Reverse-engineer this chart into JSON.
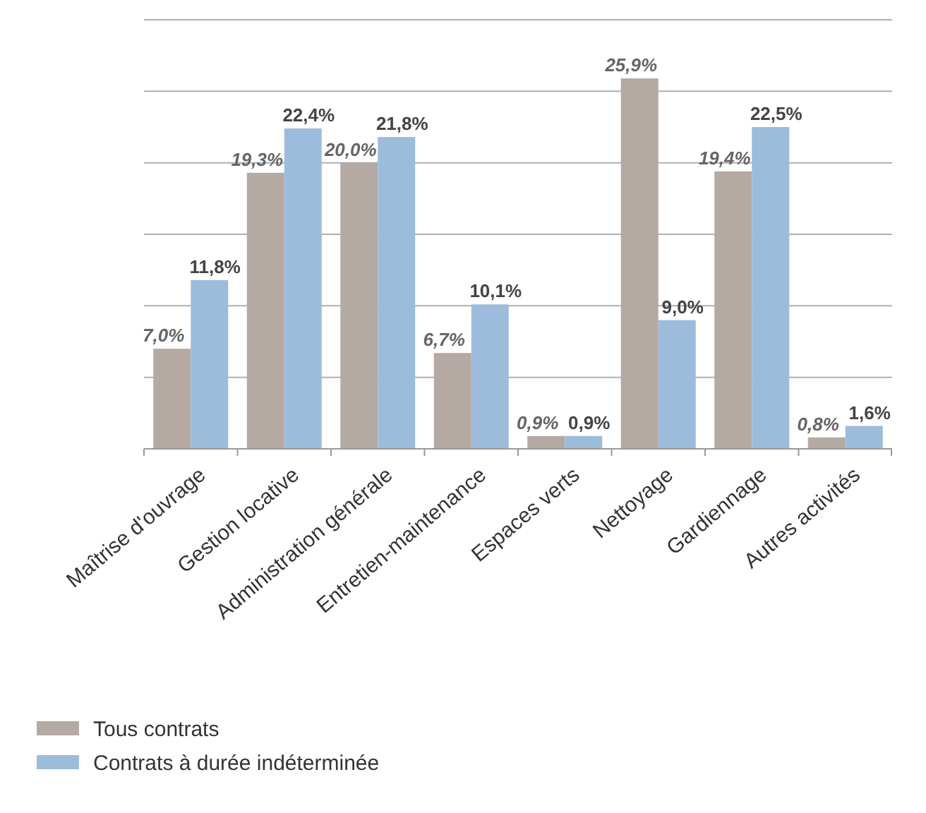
{
  "chart_data": {
    "type": "bar",
    "categories": [
      "Maîtrise d'ouvrage",
      "Gestion locative",
      "Administration générale",
      "Entretien-maintenance",
      "Espaces verts",
      "Nettoyage",
      "Gardiennage",
      "Autres activités"
    ],
    "series": [
      {
        "name": "Tous contrats",
        "color": "#b5a9a4",
        "values": [
          7.0,
          19.3,
          20.0,
          6.7,
          0.9,
          25.9,
          19.4,
          0.8
        ],
        "value_labels": [
          "7,0%",
          "19,3%",
          "20,0%",
          "6,7%",
          "0,9%",
          "25,9%",
          "19,4%",
          "0,8%"
        ]
      },
      {
        "name": "Contrats à durée indéterminée",
        "color": "#9dbcdc",
        "values": [
          11.8,
          22.4,
          21.8,
          10.1,
          0.9,
          9.0,
          22.5,
          1.6
        ],
        "value_labels": [
          "11,8%",
          "22,4%",
          "21,8%",
          "10,1%",
          "0,9%",
          "9,0%",
          "22,5%",
          "1,6%"
        ]
      }
    ],
    "ylim": [
      0,
      30
    ],
    "yticks": [
      {
        "value": 0,
        "label": null
      },
      {
        "value": 5,
        "label": null
      },
      {
        "value": 10,
        "label": null
      },
      {
        "value": 15,
        "label": null
      },
      {
        "value": 20,
        "label": null
      },
      {
        "value": 25,
        "label": null
      },
      {
        "value": 30,
        "label": null
      }
    ],
    "grid": "y",
    "legend": "bottom left",
    "tick_labels": "x"
  }
}
